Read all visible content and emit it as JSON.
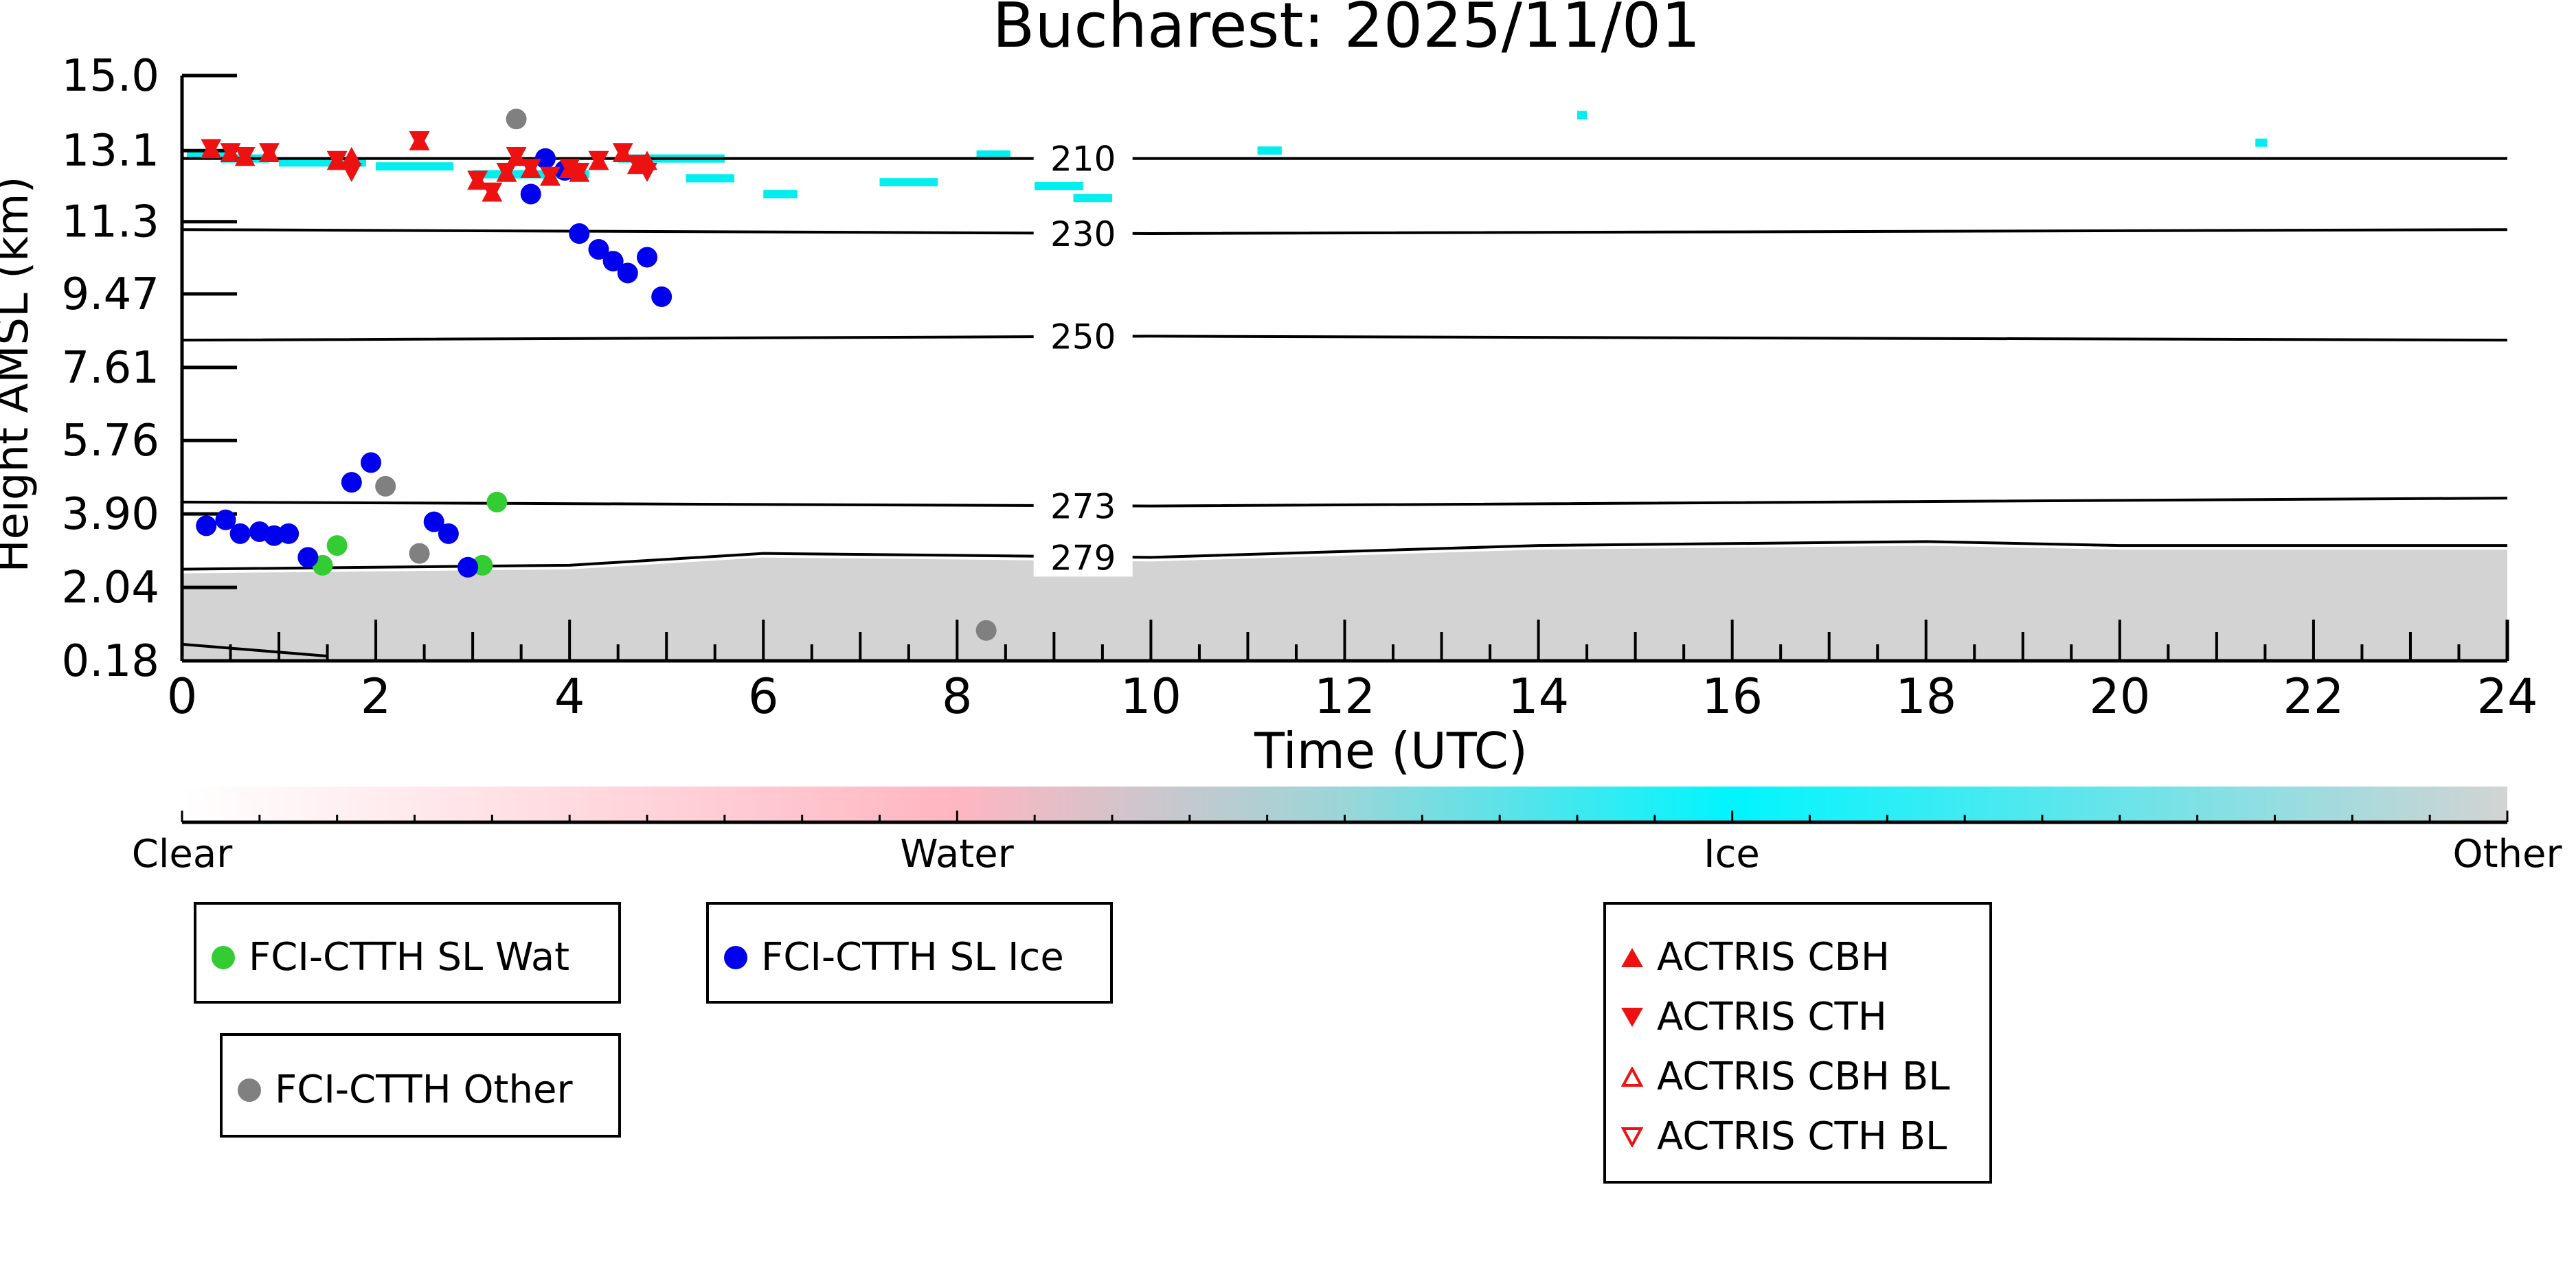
{
  "chart_data": {
    "type": "scatter",
    "title": "Bucharest: 2025/11/01",
    "xlabel": "Time (UTC)",
    "ylabel": "Height AMSL (km)",
    "xlim": [
      0,
      24
    ],
    "x_ticks": [
      "0",
      "2",
      "4",
      "6",
      "8",
      "10",
      "12",
      "14",
      "16",
      "18",
      "20",
      "22",
      "24"
    ],
    "y_ticks": [
      "0.18",
      "2.04",
      "3.90",
      "5.76",
      "7.61",
      "9.47",
      "11.3",
      "13.1",
      "15.0"
    ],
    "ylim": [
      0.18,
      15.0
    ],
    "colors": {
      "water": "#33cc33",
      "ice": "#0000ee",
      "other": "#808080",
      "actris": "#ee1111",
      "cloud_ice": "#00eeee",
      "cloud_other": "#d3d3d3"
    },
    "isotherms": [
      {
        "label": "210",
        "points": [
          [
            0,
            12.9
          ],
          [
            10,
            12.9
          ],
          [
            24,
            12.9
          ]
        ]
      },
      {
        "label": "230",
        "points": [
          [
            0,
            11.1
          ],
          [
            10,
            11.0
          ],
          [
            24,
            11.1
          ]
        ]
      },
      {
        "label": "250",
        "points": [
          [
            0,
            8.3
          ],
          [
            10,
            8.4
          ],
          [
            24,
            8.3
          ]
        ]
      },
      {
        "label": "273",
        "points": [
          [
            0,
            4.2
          ],
          [
            10,
            4.1
          ],
          [
            24,
            4.3
          ]
        ]
      },
      {
        "label": "279",
        "points": [
          [
            0,
            2.5
          ],
          [
            4,
            2.6
          ],
          [
            6,
            2.9
          ],
          [
            10,
            2.8
          ],
          [
            14,
            3.1
          ],
          [
            18,
            3.2
          ],
          [
            20,
            3.1
          ],
          [
            24,
            3.1
          ]
        ]
      }
    ],
    "series": [
      {
        "name": "FCI-CTTH SL Wat",
        "marker": "circle",
        "color": "#33cc33",
        "points": [
          [
            1.45,
            2.6
          ],
          [
            1.6,
            3.1
          ],
          [
            3.1,
            2.6
          ],
          [
            3.25,
            4.2
          ]
        ]
      },
      {
        "name": "FCI-CTTH SL Ice",
        "marker": "circle",
        "color": "#0000ee",
        "points": [
          [
            0.25,
            3.6
          ],
          [
            0.45,
            3.75
          ],
          [
            0.6,
            3.4
          ],
          [
            0.8,
            3.45
          ],
          [
            0.95,
            3.35
          ],
          [
            1.1,
            3.4
          ],
          [
            1.3,
            2.8
          ],
          [
            1.75,
            4.7
          ],
          [
            1.95,
            5.2
          ],
          [
            2.6,
            3.7
          ],
          [
            2.75,
            3.4
          ],
          [
            2.95,
            2.55
          ],
          [
            3.6,
            12.0
          ],
          [
            3.75,
            12.9
          ],
          [
            3.95,
            12.6
          ],
          [
            4.1,
            11.0
          ],
          [
            4.3,
            10.6
          ],
          [
            4.45,
            10.3
          ],
          [
            4.6,
            10.0
          ],
          [
            4.8,
            10.4
          ],
          [
            4.95,
            9.4
          ]
        ]
      },
      {
        "name": "FCI-CTTH Other",
        "marker": "circle",
        "color": "#808080",
        "points": [
          [
            2.1,
            4.6
          ],
          [
            2.45,
            2.9
          ],
          [
            3.45,
            13.9
          ],
          [
            8.3,
            0.95
          ]
        ]
      },
      {
        "name": "ACTRIS CBH",
        "marker": "triangle-up",
        "color": "#ee1111",
        "points": [
          [
            0.3,
            13.1
          ],
          [
            0.5,
            13.0
          ],
          [
            0.65,
            12.9
          ],
          [
            0.9,
            13.0
          ],
          [
            1.6,
            12.8
          ],
          [
            1.75,
            12.9
          ],
          [
            2.45,
            13.3
          ],
          [
            3.05,
            12.3
          ],
          [
            3.2,
            12.0
          ],
          [
            3.35,
            12.5
          ],
          [
            3.45,
            12.9
          ],
          [
            3.6,
            12.6
          ],
          [
            3.8,
            12.4
          ],
          [
            4.0,
            12.6
          ],
          [
            4.1,
            12.5
          ],
          [
            4.3,
            12.8
          ],
          [
            4.55,
            13.0
          ],
          [
            4.7,
            12.7
          ],
          [
            4.8,
            12.8
          ]
        ]
      },
      {
        "name": "ACTRIS CTH",
        "marker": "triangle-down",
        "color": "#ee1111",
        "points": [
          [
            0.3,
            13.2
          ],
          [
            0.5,
            13.1
          ],
          [
            0.65,
            13.0
          ],
          [
            0.9,
            13.1
          ],
          [
            1.6,
            12.9
          ],
          [
            1.75,
            12.6
          ],
          [
            2.45,
            13.4
          ],
          [
            3.05,
            12.4
          ],
          [
            3.2,
            12.1
          ],
          [
            3.35,
            12.6
          ],
          [
            3.45,
            13.0
          ],
          [
            3.6,
            12.7
          ],
          [
            3.8,
            12.5
          ],
          [
            4.0,
            12.7
          ],
          [
            4.1,
            12.6
          ],
          [
            4.3,
            12.9
          ],
          [
            4.55,
            13.1
          ],
          [
            4.7,
            12.8
          ],
          [
            4.8,
            12.6
          ]
        ]
      },
      {
        "name": "ACTRIS CBH BL",
        "marker": "triangle-up-open",
        "color": "#ee1111",
        "points": []
      },
      {
        "name": "ACTRIS CTH BL",
        "marker": "triangle-down-open",
        "color": "#ee1111",
        "points": []
      }
    ],
    "colorbar": {
      "labels": [
        "Clear",
        "Water",
        "Ice",
        "Other"
      ],
      "stops": [
        "#ffffff",
        "#ffb6c1",
        "#00f5ff",
        "#d3d3d3"
      ]
    }
  },
  "legend": {
    "wat": "FCI-CTTH SL Wat",
    "ice": "FCI-CTTH SL Ice",
    "other": "FCI-CTTH Other",
    "cbh": "ACTRIS CBH",
    "cth": "ACTRIS CTH",
    "cbh_bl": "ACTRIS CBH BL",
    "cth_bl": "ACTRIS CTH BL"
  }
}
